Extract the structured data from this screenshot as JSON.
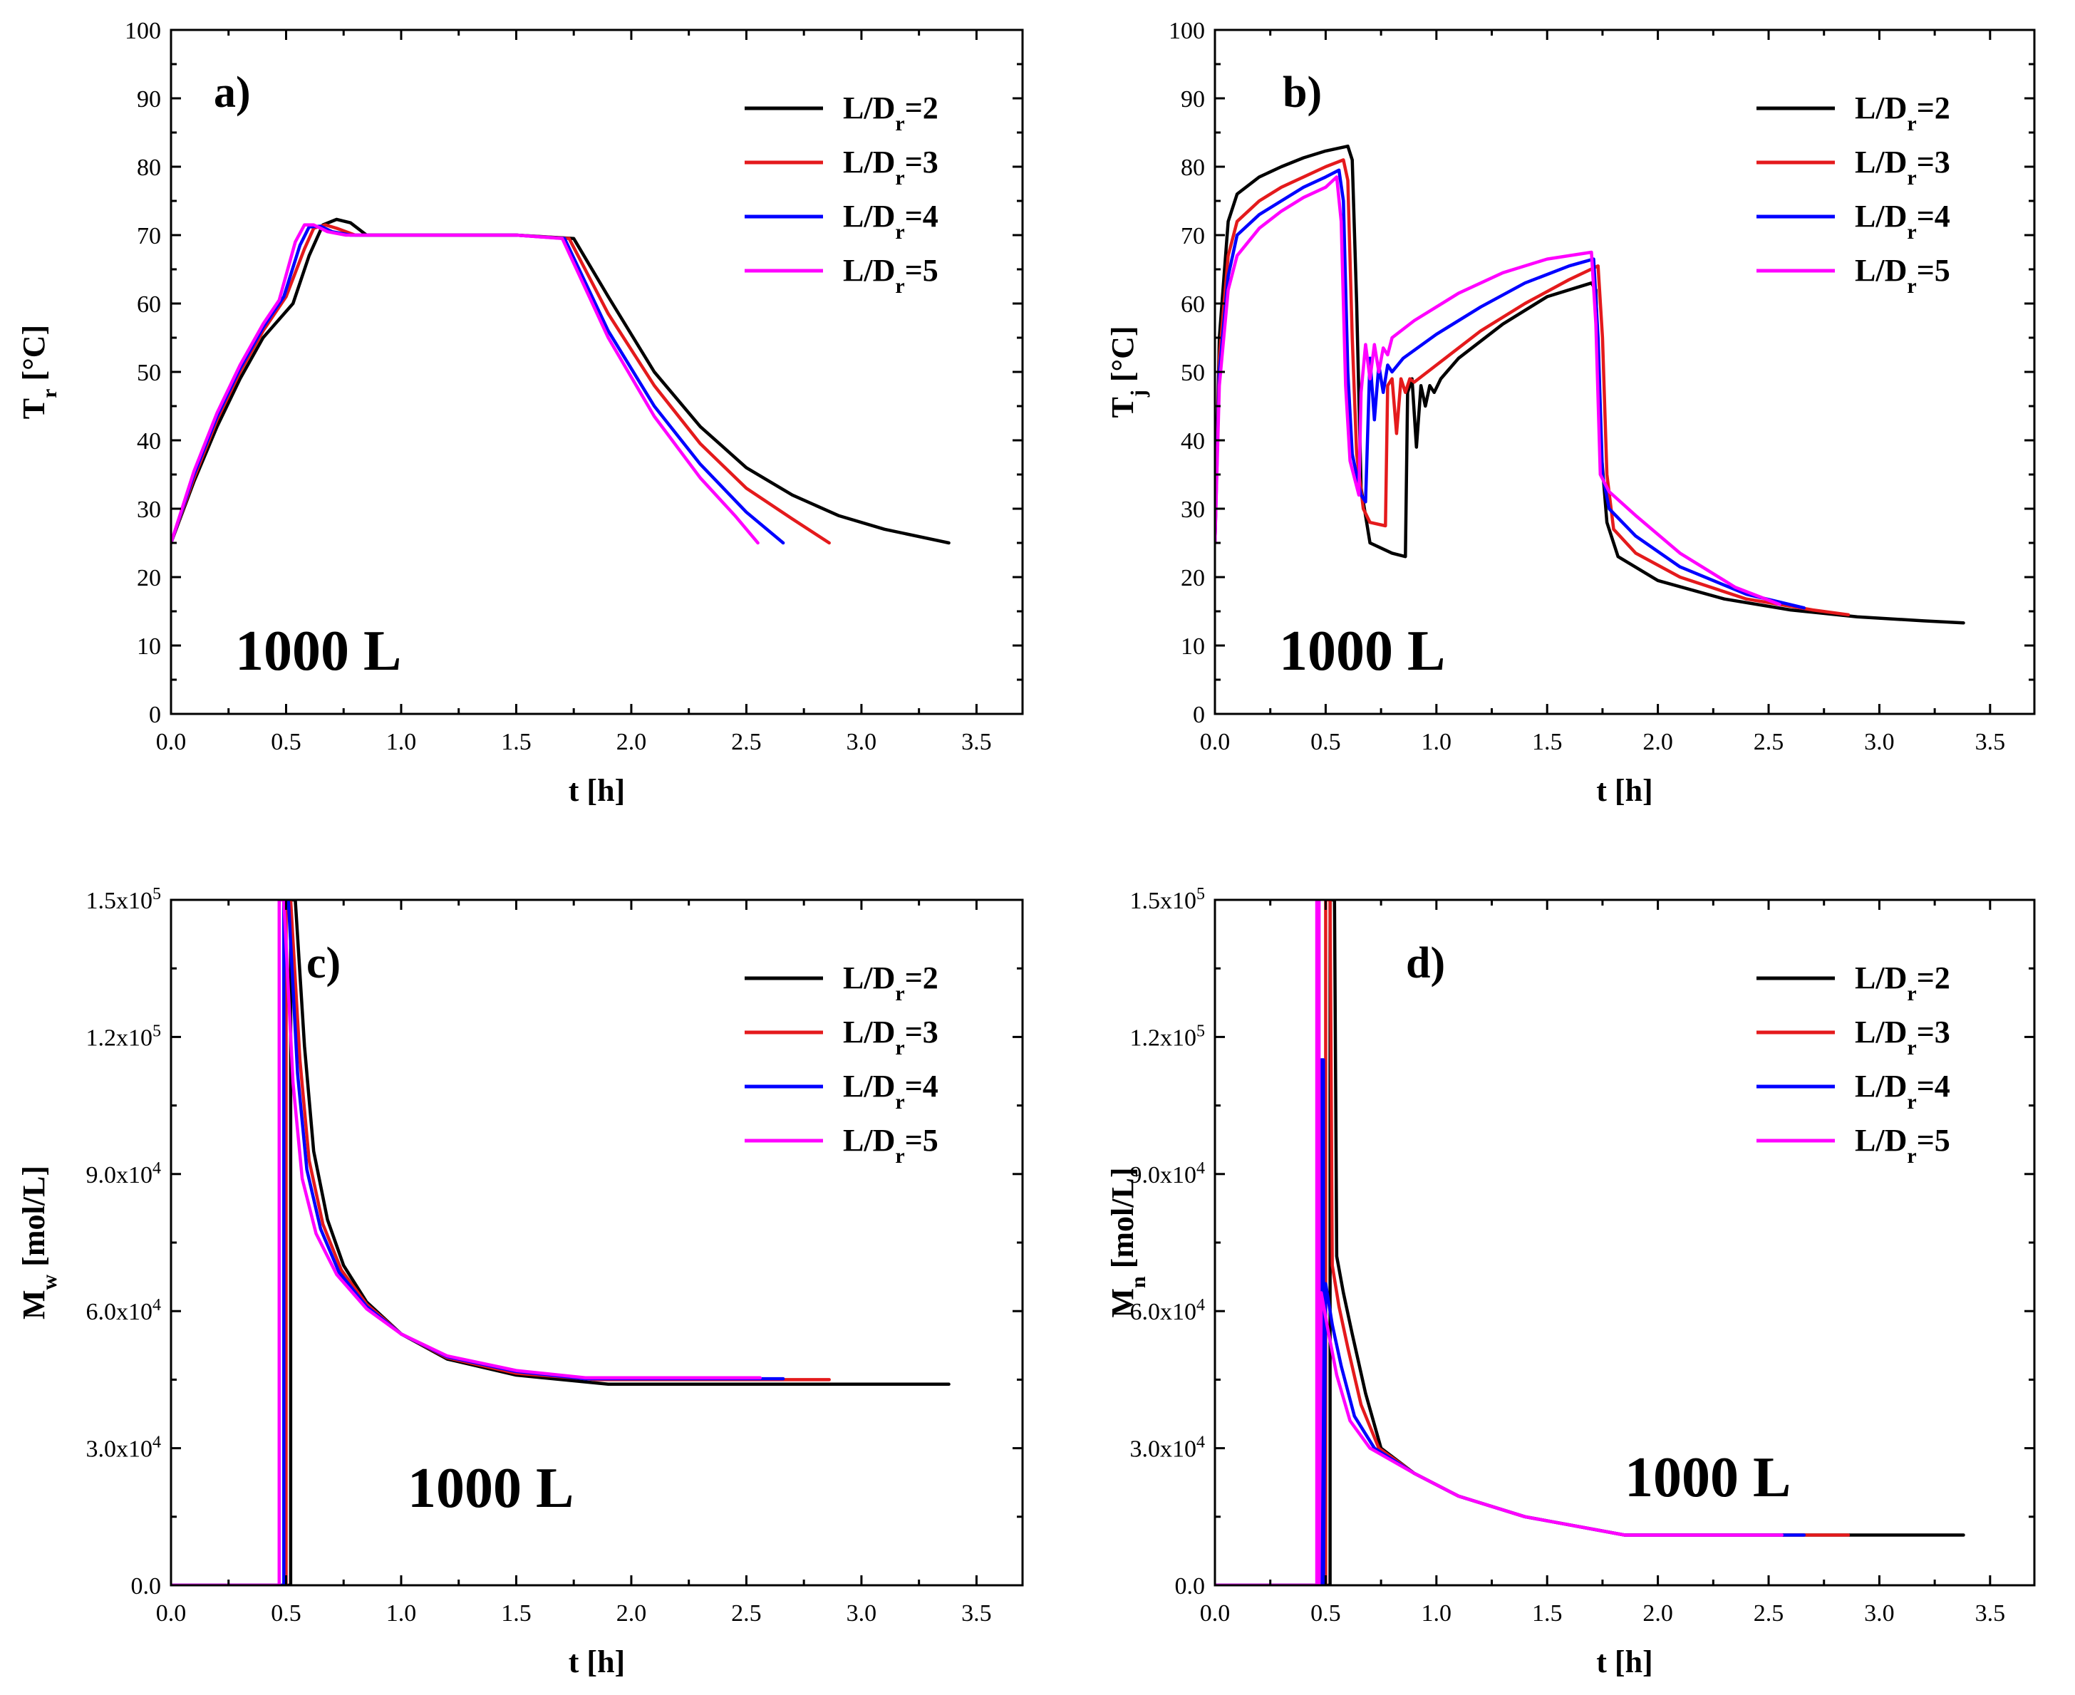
{
  "series_colors": [
    "#000000",
    "#e41a1c",
    "#0000ff",
    "#ff00ff"
  ],
  "chart_data": [
    {
      "type": "line",
      "panel_tag": "a)",
      "volume_label": "1000 L",
      "xlabel": "t [h]",
      "ylabel_main": "T",
      "ylabel_sub": "r",
      "ylabel_rest": " [°C]",
      "xlim": [
        0,
        3.7
      ],
      "ylim": [
        0,
        100
      ],
      "xticks": [
        0.0,
        0.5,
        1.0,
        1.5,
        2.0,
        2.5,
        3.0,
        3.5
      ],
      "xtick_labels": [
        "0.0",
        "0.5",
        "1.0",
        "1.5",
        "2.0",
        "2.5",
        "3.0",
        "3.5"
      ],
      "yticks": [
        0,
        10,
        20,
        30,
        40,
        50,
        60,
        70,
        80,
        90,
        100
      ],
      "ytick_labels": [
        "0",
        "10",
        "20",
        "30",
        "40",
        "50",
        "60",
        "70",
        "80",
        "90",
        "100"
      ],
      "legend_position": "top-right",
      "series": [
        {
          "name_main": "L/D",
          "name_sub": "r",
          "name_rest": "=2",
          "x": [
            0,
            0.1,
            0.2,
            0.3,
            0.4,
            0.53,
            0.6,
            0.66,
            0.72,
            0.78,
            0.85,
            1.0,
            1.5,
            1.75,
            1.9,
            2.1,
            2.3,
            2.5,
            2.7,
            2.9,
            3.1,
            3.38
          ],
          "y": [
            25,
            34,
            42,
            49,
            55,
            60,
            67,
            71.5,
            72.3,
            71.8,
            70,
            70,
            70,
            69.5,
            61,
            50,
            42,
            36,
            32,
            29,
            27,
            25
          ]
        },
        {
          "name_main": "L/D",
          "name_sub": "r",
          "name_rest": "=3",
          "x": [
            0,
            0.1,
            0.2,
            0.3,
            0.4,
            0.5,
            0.58,
            0.62,
            0.67,
            0.72,
            0.8,
            1.0,
            1.5,
            1.73,
            1.9,
            2.1,
            2.3,
            2.5,
            2.7,
            2.86
          ],
          "y": [
            25,
            34.5,
            43,
            50,
            56,
            61,
            68,
            71,
            71.5,
            71,
            70,
            70,
            70,
            69.5,
            58.5,
            48,
            39.5,
            33,
            28.5,
            25
          ]
        },
        {
          "name_main": "L/D",
          "name_sub": "r",
          "name_rest": "=4",
          "x": [
            0,
            0.1,
            0.2,
            0.3,
            0.4,
            0.49,
            0.56,
            0.6,
            0.65,
            0.7,
            0.78,
            1.0,
            1.5,
            1.71,
            1.9,
            2.1,
            2.3,
            2.5,
            2.66
          ],
          "y": [
            25,
            35,
            43.5,
            50.5,
            56.5,
            61,
            68.5,
            71.2,
            71.3,
            70.5,
            70,
            70,
            70,
            69.5,
            56,
            45,
            36.5,
            29.5,
            25
          ]
        },
        {
          "name_main": "L/D",
          "name_sub": "r",
          "name_rest": "=5",
          "x": [
            0,
            0.1,
            0.2,
            0.3,
            0.4,
            0.47,
            0.54,
            0.58,
            0.62,
            0.68,
            0.76,
            1.0,
            1.5,
            1.7,
            1.9,
            2.1,
            2.3,
            2.45,
            2.55
          ],
          "y": [
            25,
            35.5,
            44,
            51,
            57,
            60.5,
            69,
            71.5,
            71.5,
            70.5,
            70,
            70,
            70,
            69.5,
            55,
            43.5,
            34.5,
            29,
            25
          ]
        }
      ]
    },
    {
      "type": "line",
      "panel_tag": "b)",
      "volume_label": "1000 L",
      "xlabel": "t [h]",
      "ylabel_main": "T",
      "ylabel_sub": "j",
      "ylabel_rest": " [°C]",
      "xlim": [
        0,
        3.7
      ],
      "ylim": [
        0,
        100
      ],
      "xticks": [
        0.0,
        0.5,
        1.0,
        1.5,
        2.0,
        2.5,
        3.0,
        3.5
      ],
      "xtick_labels": [
        "0.0",
        "0.5",
        "1.0",
        "1.5",
        "2.0",
        "2.5",
        "3.0",
        "3.5"
      ],
      "yticks": [
        0,
        10,
        20,
        30,
        40,
        50,
        60,
        70,
        80,
        90,
        100
      ],
      "ytick_labels": [
        "0",
        "10",
        "20",
        "30",
        "40",
        "50",
        "60",
        "70",
        "80",
        "90",
        "100"
      ],
      "legend_position": "top-right",
      "series": [
        {
          "name_main": "L/D",
          "name_sub": "r",
          "name_rest": "=2",
          "x": [
            0,
            0.02,
            0.06,
            0.1,
            0.2,
            0.3,
            0.4,
            0.5,
            0.6,
            0.62,
            0.64,
            0.66,
            0.7,
            0.8,
            0.86,
            0.87,
            0.89,
            0.91,
            0.93,
            0.95,
            0.97,
            0.99,
            1.02,
            1.1,
            1.3,
            1.5,
            1.7,
            1.72,
            1.74,
            1.77,
            1.82,
            2.0,
            2.3,
            2.6,
            2.9,
            3.2,
            3.38
          ],
          "y": [
            25,
            55,
            72,
            76,
            78.5,
            80,
            81.3,
            82.3,
            83,
            81,
            60,
            33,
            25,
            23.5,
            23,
            47,
            49,
            39,
            48,
            45,
            48,
            47,
            49,
            52,
            57,
            61,
            63,
            62,
            40,
            28,
            23,
            19.5,
            16.8,
            15.2,
            14.2,
            13.6,
            13.3
          ]
        },
        {
          "name_main": "L/D",
          "name_sub": "r",
          "name_rest": "=3",
          "x": [
            0,
            0.02,
            0.06,
            0.1,
            0.2,
            0.3,
            0.4,
            0.5,
            0.58,
            0.6,
            0.62,
            0.64,
            0.67,
            0.7,
            0.77,
            0.78,
            0.8,
            0.82,
            0.84,
            0.86,
            0.88,
            0.9,
            1.0,
            1.2,
            1.4,
            1.6,
            1.73,
            1.75,
            1.77,
            1.8,
            1.9,
            2.1,
            2.4,
            2.7,
            2.86
          ],
          "y": [
            25,
            52,
            67,
            72,
            75,
            77,
            78.5,
            80,
            81,
            78,
            55,
            38,
            30,
            28,
            27.5,
            48,
            49,
            41,
            49,
            47,
            49,
            48.5,
            51,
            56,
            60,
            63.5,
            65.5,
            55,
            35,
            27,
            23.5,
            20,
            16.8,
            15.2,
            14.5
          ]
        },
        {
          "name_main": "L/D",
          "name_sub": "r",
          "name_rest": "=4",
          "x": [
            0,
            0.02,
            0.06,
            0.1,
            0.2,
            0.3,
            0.4,
            0.5,
            0.56,
            0.58,
            0.6,
            0.62,
            0.66,
            0.68,
            0.7,
            0.72,
            0.74,
            0.76,
            0.78,
            0.8,
            0.85,
            1.0,
            1.2,
            1.4,
            1.6,
            1.71,
            1.73,
            1.75,
            1.78,
            1.9,
            2.1,
            2.4,
            2.66
          ],
          "y": [
            25,
            50,
            64,
            70,
            73,
            75,
            77,
            78.5,
            79.5,
            75,
            50,
            38,
            32,
            31,
            52,
            43,
            51,
            47,
            51,
            50,
            52,
            55.5,
            59.5,
            63,
            65.5,
            66.5,
            55,
            35,
            30,
            26,
            21.5,
            17.5,
            15.5
          ]
        },
        {
          "name_main": "L/D",
          "name_sub": "r",
          "name_rest": "=5",
          "x": [
            0,
            0.02,
            0.06,
            0.1,
            0.2,
            0.3,
            0.4,
            0.5,
            0.55,
            0.57,
            0.59,
            0.61,
            0.65,
            0.66,
            0.68,
            0.7,
            0.72,
            0.74,
            0.76,
            0.78,
            0.8,
            0.9,
            1.1,
            1.3,
            1.5,
            1.7,
            1.72,
            1.74,
            1.78,
            1.9,
            2.1,
            2.35,
            2.55
          ],
          "y": [
            25,
            48,
            62,
            67,
            71,
            73.5,
            75.5,
            77,
            78.5,
            72,
            48,
            37,
            32,
            47,
            54,
            49,
            54,
            50,
            53.5,
            52.5,
            55,
            57.5,
            61.5,
            64.5,
            66.5,
            67.5,
            57,
            35,
            32.5,
            29,
            23.5,
            18.5,
            16
          ]
        }
      ]
    },
    {
      "type": "line",
      "panel_tag": "c)",
      "volume_label": "1000 L",
      "xlabel": "t [h]",
      "ylabel_main": "M",
      "ylabel_sub": "w",
      "ylabel_rest": " [mol/L]",
      "xlim": [
        0,
        3.7
      ],
      "ylim": [
        0,
        150000
      ],
      "xticks": [
        0.0,
        0.5,
        1.0,
        1.5,
        2.0,
        2.5,
        3.0,
        3.5
      ],
      "xtick_labels": [
        "0.0",
        "0.5",
        "1.0",
        "1.5",
        "2.0",
        "2.5",
        "3.0",
        "3.5"
      ],
      "yticks": [
        0,
        30000,
        60000,
        90000,
        120000,
        150000
      ],
      "ytick_mantissas": [
        "0.0",
        "3.0x10",
        "6.0x10",
        "9.0x10",
        "1.2x10",
        "1.5x10"
      ],
      "ytick_exponents": [
        "",
        "4",
        "4",
        "4",
        "5",
        "5"
      ],
      "legend_position": "top-right",
      "series": [
        {
          "name_main": "L/D",
          "name_sub": "r",
          "name_rest": "=2",
          "x": [
            0,
            0.52,
            0.52,
            0.54,
            0.54,
            0.58,
            0.62,
            0.68,
            0.75,
            0.85,
            1.0,
            1.2,
            1.5,
            1.9,
            2.3,
            2.8,
            3.38
          ],
          "y": [
            0,
            0,
            150000,
            150000,
            150000,
            118000,
            95000,
            80000,
            70000,
            62000,
            55000,
            49500,
            46000,
            44000,
            44000,
            44000,
            44000
          ]
        },
        {
          "name_main": "L/D",
          "name_sub": "r",
          "name_rest": "=3",
          "x": [
            0,
            0.5,
            0.5,
            0.52,
            0.52,
            0.56,
            0.6,
            0.66,
            0.74,
            0.85,
            1.0,
            1.2,
            1.5,
            1.85,
            2.3,
            2.86
          ],
          "y": [
            0,
            0,
            150000,
            150000,
            150000,
            115000,
            93000,
            79000,
            69000,
            61500,
            55000,
            49800,
            46400,
            45000,
            45000,
            45000
          ]
        },
        {
          "name_main": "L/D",
          "name_sub": "r",
          "name_rest": "=4",
          "x": [
            0,
            0.49,
            0.49,
            0.51,
            0.51,
            0.55,
            0.59,
            0.65,
            0.73,
            0.85,
            1.0,
            1.2,
            1.5,
            1.8,
            2.2,
            2.66
          ],
          "y": [
            0,
            0,
            150000,
            150000,
            150000,
            112000,
            91000,
            78000,
            68500,
            61000,
            55000,
            50000,
            46800,
            45200,
            45200,
            45200
          ]
        },
        {
          "name_main": "L/D",
          "name_sub": "r",
          "name_rest": "=5",
          "x": [
            0,
            0.47,
            0.47,
            0.49,
            0.49,
            0.53,
            0.57,
            0.63,
            0.72,
            0.85,
            1.0,
            1.2,
            1.5,
            1.8,
            2.2,
            2.56
          ],
          "y": [
            0,
            0,
            150000,
            150000,
            150000,
            110000,
            89000,
            77000,
            68000,
            60500,
            55000,
            50200,
            47000,
            45400,
            45400,
            45400
          ]
        }
      ]
    },
    {
      "type": "line",
      "panel_tag": "d)",
      "volume_label": "1000 L",
      "xlabel": "t [h]",
      "ylabel_main": "M",
      "ylabel_sub": "n",
      "ylabel_rest": " [mol/L]",
      "xlim": [
        0,
        3.7
      ],
      "ylim": [
        0,
        150000
      ],
      "xticks": [
        0.0,
        0.5,
        1.0,
        1.5,
        2.0,
        2.5,
        3.0,
        3.5
      ],
      "xtick_labels": [
        "0.0",
        "0.5",
        "1.0",
        "1.5",
        "2.0",
        "2.5",
        "3.0",
        "3.5"
      ],
      "yticks": [
        0,
        30000,
        60000,
        90000,
        120000,
        150000
      ],
      "ytick_mantissas": [
        "0.0",
        "3.0x10",
        "6.0x10",
        "9.0x10",
        "1.2x10",
        "1.5x10"
      ],
      "ytick_exponents": [
        "",
        "4",
        "4",
        "4",
        "5",
        "5"
      ],
      "legend_position": "top-right",
      "series": [
        {
          "name_main": "L/D",
          "name_sub": "r",
          "name_rest": "=2",
          "x": [
            0,
            0.52,
            0.52,
            0.54,
            0.54,
            0.55,
            0.58,
            0.62,
            0.68,
            0.75,
            0.9,
            1.1,
            1.4,
            1.85,
            2.4,
            3.38
          ],
          "y": [
            0,
            0,
            150000,
            150000,
            150000,
            72000,
            64000,
            55000,
            42000,
            30000,
            24500,
            19500,
            15000,
            11000,
            11000,
            11000
          ]
        },
        {
          "name_main": "L/D",
          "name_sub": "r",
          "name_rest": "=3",
          "x": [
            0,
            0.5,
            0.5,
            0.52,
            0.52,
            0.53,
            0.56,
            0.6,
            0.66,
            0.74,
            0.9,
            1.1,
            1.4,
            1.85,
            2.4,
            2.86
          ],
          "y": [
            0,
            0,
            150000,
            150000,
            150000,
            70000,
            61000,
            52000,
            39500,
            30000,
            24500,
            19500,
            15000,
            11000,
            11000,
            11000
          ]
        },
        {
          "name_main": "L/D",
          "name_sub": "r",
          "name_rest": "=4",
          "x": [
            0,
            0.48,
            0.48,
            0.49,
            0.49,
            0.5,
            0.53,
            0.57,
            0.63,
            0.72,
            0.9,
            1.1,
            1.4,
            1.85,
            2.4,
            2.66
          ],
          "y": [
            0,
            0,
            115000,
            115000,
            0,
            66000,
            57000,
            48000,
            37000,
            30000,
            24500,
            19500,
            15000,
            11000,
            11000,
            11000
          ]
        },
        {
          "name_main": "L/D",
          "name_sub": "r",
          "name_rest": "=5",
          "x": [
            0,
            0.46,
            0.46,
            0.47,
            0.47,
            0.48,
            0.51,
            0.55,
            0.61,
            0.7,
            0.9,
            1.1,
            1.4,
            1.85,
            2.3,
            2.56
          ],
          "y": [
            0,
            0,
            150000,
            150000,
            0,
            64000,
            56000,
            46000,
            36000,
            30000,
            24500,
            19500,
            15000,
            11000,
            11000,
            11000
          ]
        }
      ]
    }
  ]
}
